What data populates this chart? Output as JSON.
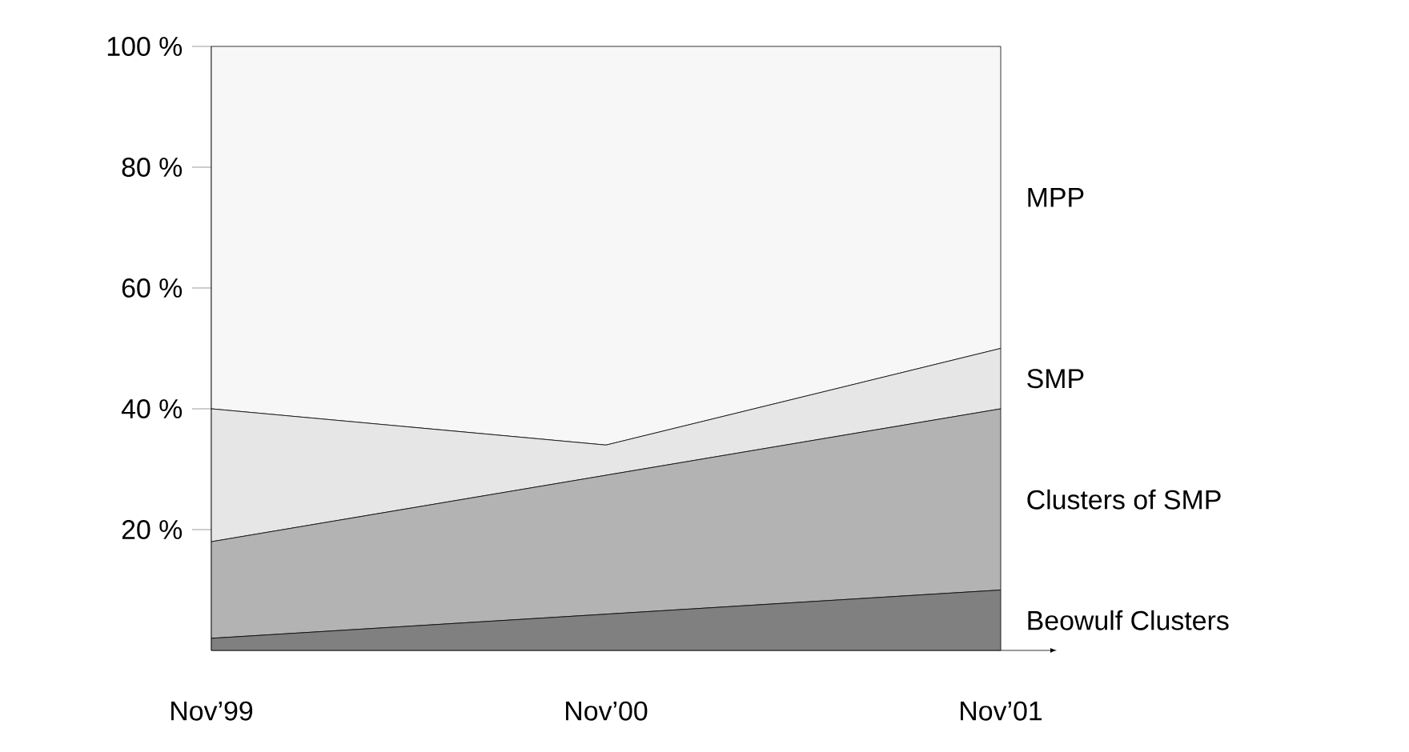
{
  "chart_data": {
    "type": "area",
    "stacked": true,
    "categories": [
      "Nov’99",
      "Nov’00",
      "Nov’01"
    ],
    "series": [
      {
        "name": "Beowulf Clusters",
        "color": "#808080",
        "values": [
          2,
          6,
          10
        ]
      },
      {
        "name": "Clusters of SMP",
        "color": "#b3b3b3",
        "values": [
          16,
          23,
          30
        ]
      },
      {
        "name": "SMP",
        "color": "#e6e6e6",
        "values": [
          22,
          5,
          10
        ]
      },
      {
        "name": "MPP",
        "color": "#f7f7f7",
        "values": [
          60,
          66,
          50
        ]
      }
    ],
    "ylim": [
      0,
      100
    ],
    "yticks": [
      {
        "value": 20,
        "label": "20 %"
      },
      {
        "value": 40,
        "label": "40 %"
      },
      {
        "value": 60,
        "label": "60 %"
      },
      {
        "value": 80,
        "label": "80 %"
      },
      {
        "value": 100,
        "label": "100 %"
      }
    ],
    "grid": false,
    "legend": false
  }
}
